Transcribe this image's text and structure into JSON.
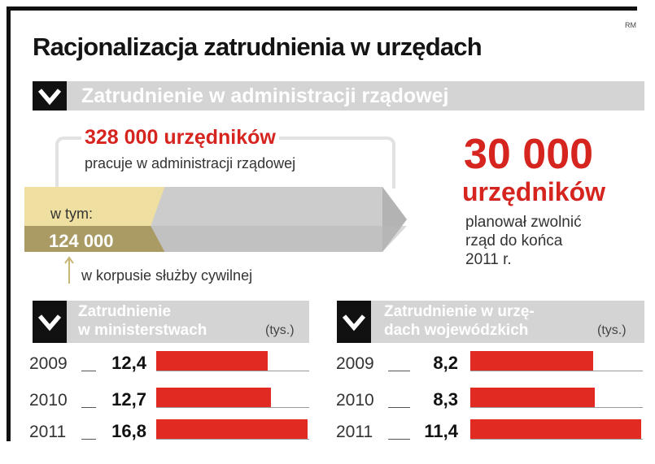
{
  "credit": "RM",
  "title": "Racjonalizacja zatrudnienia w urzędach",
  "section_main": {
    "header": "Zatrudnienie w administracji rządowej",
    "total_value": "328 000 urzędników",
    "total_desc": "pracuje w administracji rządowej",
    "subset_label": "w tym:",
    "subset_value": "124 000",
    "subset_fraction": 0.378,
    "subset_desc": "w korpusie służby cywilnej",
    "planned_value": "30 000",
    "planned_unit": "urzędników",
    "planned_desc_1": "planował zwolnić",
    "planned_desc_2": "rząd do końca",
    "planned_desc_3": "2011 r."
  },
  "colors": {
    "accent_red": "#d6241f",
    "bar_red": "#e12a22",
    "header_gray": "#d4d4d4",
    "subset_yellow": "#efe0a2",
    "bar_gray": "#cccccc"
  },
  "chart_data": [
    {
      "type": "bar",
      "title_line1": "Zatrudnienie",
      "title_line2": "w ministerstwach",
      "unit": "(tys.)",
      "categories": [
        "2009",
        "2010",
        "2011"
      ],
      "values": [
        12.4,
        12.7,
        16.8
      ],
      "labels": [
        "12,4",
        "12,7",
        "16,8"
      ]
    },
    {
      "type": "bar",
      "title_line1": "Zatrudnienie w urzę-",
      "title_line2": "dach wojewódzkich",
      "unit": "(tys.)",
      "categories": [
        "2009",
        "2010",
        "2011"
      ],
      "values": [
        8.2,
        8.3,
        11.4
      ],
      "labels": [
        "8,2",
        "8,3",
        "11,4"
      ]
    }
  ]
}
